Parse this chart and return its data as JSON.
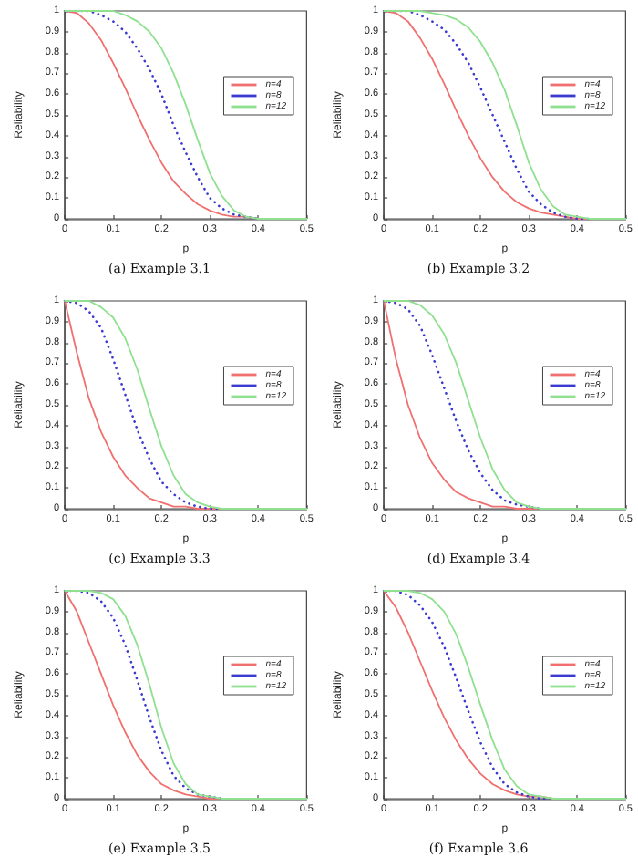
{
  "chart_data": [
    {
      "type": "line",
      "title": "(a) Example 3.1",
      "xlabel": "p",
      "ylabel": "Reliability",
      "x": [
        0,
        0.025,
        0.05,
        0.075,
        0.1,
        0.125,
        0.15,
        0.175,
        0.2,
        0.225,
        0.25,
        0.275,
        0.3,
        0.325,
        0.35,
        0.375,
        0.4,
        0.425,
        0.45,
        0.475,
        0.5
      ],
      "xlim": [
        0,
        0.5
      ],
      "xticks": [
        0,
        0.1,
        0.2,
        0.3,
        0.4,
        0.5
      ],
      "ylim": [
        0,
        1
      ],
      "yticks": [
        0,
        0.1,
        0.2,
        0.3,
        0.4,
        0.5,
        0.6,
        0.7,
        0.8,
        0.9,
        1
      ],
      "grid": false,
      "legend": "right",
      "marker": "none",
      "series": [
        {
          "name": "n=4",
          "color": "#f07070",
          "line_style": "solid",
          "values": [
            1,
            0.99,
            0.94,
            0.86,
            0.75,
            0.63,
            0.5,
            0.38,
            0.27,
            0.18,
            0.12,
            0.07,
            0.04,
            0.02,
            0.01,
            0.01,
            0,
            null,
            null,
            null,
            null
          ]
        },
        {
          "name": "n=8",
          "color": "#3a3ad0",
          "line_style": "dotted",
          "values": [
            1,
            1,
            1,
            0.98,
            0.95,
            0.9,
            0.82,
            0.72,
            0.6,
            0.45,
            0.32,
            0.2,
            0.1,
            0.05,
            0.02,
            0.01,
            0,
            null,
            null,
            null,
            null
          ]
        },
        {
          "name": "n=12",
          "color": "#8fe08f",
          "line_style": "solid",
          "values": [
            1,
            1,
            1,
            1,
            1,
            0.98,
            0.95,
            0.9,
            0.82,
            0.7,
            0.55,
            0.38,
            0.22,
            0.11,
            0.04,
            0.01,
            0,
            0,
            0,
            0,
            0
          ]
        }
      ]
    },
    {
      "type": "line",
      "title": "(b) Example 3.2",
      "xlabel": "p",
      "ylabel": "Reliability",
      "x": [
        0,
        0.025,
        0.05,
        0.075,
        0.1,
        0.125,
        0.15,
        0.175,
        0.2,
        0.225,
        0.25,
        0.275,
        0.3,
        0.325,
        0.35,
        0.375,
        0.4,
        0.425,
        0.45,
        0.475,
        0.5
      ],
      "xlim": [
        0,
        0.5
      ],
      "xticks": [
        0,
        0.1,
        0.2,
        0.3,
        0.4,
        0.5
      ],
      "ylim": [
        0,
        1
      ],
      "yticks": [
        0,
        0.1,
        0.2,
        0.3,
        0.4,
        0.5,
        0.6,
        0.7,
        0.8,
        0.9,
        1
      ],
      "grid": false,
      "legend": "right",
      "marker": "none",
      "series": [
        {
          "name": "n=4",
          "color": "#f07070",
          "line_style": "solid",
          "values": [
            1,
            0.99,
            0.95,
            0.87,
            0.77,
            0.65,
            0.52,
            0.4,
            0.29,
            0.2,
            0.13,
            0.08,
            0.05,
            0.03,
            0.02,
            0.01,
            0,
            0,
            null,
            null,
            null
          ]
        },
        {
          "name": "n=8",
          "color": "#3a3ad0",
          "line_style": "dotted",
          "values": [
            1,
            1,
            1,
            0.98,
            0.95,
            0.91,
            0.84,
            0.75,
            0.63,
            0.5,
            0.37,
            0.24,
            0.13,
            0.07,
            0.03,
            0.01,
            0,
            0,
            null,
            null,
            null
          ]
        },
        {
          "name": "n=12",
          "color": "#8fe08f",
          "line_style": "solid",
          "values": [
            1,
            1,
            1,
            1,
            0.99,
            0.98,
            0.96,
            0.92,
            0.85,
            0.75,
            0.62,
            0.45,
            0.27,
            0.14,
            0.06,
            0.02,
            0.01,
            0,
            0,
            0,
            0
          ]
        }
      ]
    },
    {
      "type": "line",
      "title": "(c) Example 3.3",
      "xlabel": "p",
      "ylabel": "Reliability",
      "x": [
        0,
        0.025,
        0.05,
        0.075,
        0.1,
        0.125,
        0.15,
        0.175,
        0.2,
        0.225,
        0.25,
        0.275,
        0.3,
        0.325,
        0.35,
        0.375,
        0.4,
        0.425,
        0.45,
        0.475,
        0.5
      ],
      "xlim": [
        0,
        0.5
      ],
      "xticks": [
        0,
        0.1,
        0.2,
        0.3,
        0.4,
        0.5
      ],
      "ylim": [
        0,
        1
      ],
      "yticks": [
        0,
        0.1,
        0.2,
        0.3,
        0.4,
        0.5,
        0.6,
        0.7,
        0.8,
        0.9,
        1
      ],
      "grid": false,
      "legend": "right",
      "marker": "none",
      "series": [
        {
          "name": "n=4",
          "color": "#f07070",
          "line_style": "solid",
          "values": [
            1,
            0.75,
            0.53,
            0.37,
            0.25,
            0.16,
            0.1,
            0.05,
            0.03,
            0.01,
            0.01,
            0,
            0,
            0,
            null,
            null,
            null,
            null,
            null,
            null,
            null
          ]
        },
        {
          "name": "n=8",
          "color": "#3a3ad0",
          "line_style": "dotted",
          "values": [
            1,
            0.99,
            0.95,
            0.87,
            0.72,
            0.55,
            0.38,
            0.24,
            0.13,
            0.07,
            0.03,
            0.01,
            0,
            0,
            null,
            null,
            null,
            null,
            null,
            null,
            null
          ]
        },
        {
          "name": "n=12",
          "color": "#8fe08f",
          "line_style": "solid",
          "values": [
            1,
            1,
            1,
            0.97,
            0.92,
            0.82,
            0.67,
            0.48,
            0.3,
            0.16,
            0.07,
            0.03,
            0.01,
            0,
            0,
            0,
            0,
            0,
            0,
            0,
            0
          ]
        }
      ]
    },
    {
      "type": "line",
      "title": "(d) Example 3.4",
      "xlabel": "p",
      "ylabel": "Reliability",
      "x": [
        0,
        0.025,
        0.05,
        0.075,
        0.1,
        0.125,
        0.15,
        0.175,
        0.2,
        0.225,
        0.25,
        0.275,
        0.3,
        0.325,
        0.35,
        0.375,
        0.4,
        0.425,
        0.45,
        0.475,
        0.5
      ],
      "xlim": [
        0,
        0.5
      ],
      "xticks": [
        0,
        0.1,
        0.2,
        0.3,
        0.4,
        0.5
      ],
      "ylim": [
        0,
        1
      ],
      "yticks": [
        0,
        0.1,
        0.2,
        0.3,
        0.4,
        0.5,
        0.6,
        0.7,
        0.8,
        0.9,
        1
      ],
      "grid": false,
      "legend": "right",
      "marker": "none",
      "series": [
        {
          "name": "n=4",
          "color": "#f07070",
          "line_style": "solid",
          "values": [
            1,
            0.72,
            0.5,
            0.34,
            0.22,
            0.14,
            0.08,
            0.05,
            0.03,
            0.01,
            0.01,
            0,
            0,
            0,
            null,
            null,
            null,
            null,
            null,
            null,
            null
          ]
        },
        {
          "name": "n=8",
          "color": "#3a3ad0",
          "line_style": "dotted",
          "values": [
            1,
            0.99,
            0.96,
            0.88,
            0.74,
            0.58,
            0.42,
            0.28,
            0.17,
            0.09,
            0.04,
            0.02,
            0.01,
            0,
            null,
            null,
            null,
            null,
            null,
            null,
            null
          ]
        },
        {
          "name": "n=12",
          "color": "#8fe08f",
          "line_style": "solid",
          "values": [
            1,
            1,
            1,
            0.98,
            0.93,
            0.84,
            0.7,
            0.52,
            0.34,
            0.19,
            0.09,
            0.03,
            0.01,
            0,
            0,
            0,
            0,
            0,
            0,
            0,
            0
          ]
        }
      ]
    },
    {
      "type": "line",
      "title": "(e) Example 3.5",
      "xlabel": "p",
      "ylabel": "Reliability",
      "x": [
        0,
        0.025,
        0.05,
        0.075,
        0.1,
        0.125,
        0.15,
        0.175,
        0.2,
        0.225,
        0.25,
        0.275,
        0.3,
        0.325,
        0.35,
        0.375,
        0.4,
        0.425,
        0.45,
        0.475,
        0.5
      ],
      "xlim": [
        0,
        0.5
      ],
      "xticks": [
        0,
        0.1,
        0.2,
        0.3,
        0.4,
        0.5
      ],
      "ylim": [
        0,
        1
      ],
      "yticks": [
        0,
        0.1,
        0.2,
        0.3,
        0.4,
        0.5,
        0.6,
        0.7,
        0.8,
        0.9,
        1
      ],
      "grid": false,
      "legend": "right",
      "marker": "none",
      "series": [
        {
          "name": "n=4",
          "color": "#f07070",
          "line_style": "solid",
          "values": [
            1,
            0.9,
            0.75,
            0.6,
            0.45,
            0.32,
            0.21,
            0.13,
            0.07,
            0.04,
            0.02,
            0.01,
            0,
            0,
            null,
            null,
            null,
            null,
            null,
            null,
            null
          ]
        },
        {
          "name": "n=8",
          "color": "#3a3ad0",
          "line_style": "dotted",
          "values": [
            1,
            1,
            0.99,
            0.95,
            0.87,
            0.74,
            0.57,
            0.39,
            0.23,
            0.11,
            0.05,
            0.02,
            0.01,
            0,
            null,
            null,
            null,
            null,
            null,
            null,
            null
          ]
        },
        {
          "name": "n=12",
          "color": "#8fe08f",
          "line_style": "solid",
          "values": [
            1,
            1,
            1,
            0.99,
            0.96,
            0.88,
            0.74,
            0.55,
            0.34,
            0.17,
            0.07,
            0.02,
            0.01,
            0,
            0,
            0,
            0,
            0,
            0,
            0,
            0
          ]
        }
      ]
    },
    {
      "type": "line",
      "title": "(f) Example 3.6",
      "xlabel": "p",
      "ylabel": "Reliability",
      "x": [
        0,
        0.025,
        0.05,
        0.075,
        0.1,
        0.125,
        0.15,
        0.175,
        0.2,
        0.225,
        0.25,
        0.275,
        0.3,
        0.325,
        0.35,
        0.375,
        0.4,
        0.425,
        0.45,
        0.475,
        0.5
      ],
      "xlim": [
        0,
        0.5
      ],
      "xticks": [
        0,
        0.1,
        0.2,
        0.3,
        0.4,
        0.5
      ],
      "ylim": [
        0,
        1
      ],
      "yticks": [
        0,
        0.1,
        0.2,
        0.3,
        0.4,
        0.5,
        0.6,
        0.7,
        0.8,
        0.9,
        1
      ],
      "grid": false,
      "legend": "right",
      "marker": "none",
      "series": [
        {
          "name": "n=4",
          "color": "#f07070",
          "line_style": "solid",
          "values": [
            1,
            0.92,
            0.8,
            0.66,
            0.52,
            0.39,
            0.28,
            0.19,
            0.12,
            0.07,
            0.04,
            0.02,
            0.01,
            0.01,
            0,
            null,
            null,
            null,
            null,
            null,
            null
          ]
        },
        {
          "name": "n=8",
          "color": "#3a3ad0",
          "line_style": "dotted",
          "values": [
            1,
            1,
            0.98,
            0.93,
            0.85,
            0.73,
            0.58,
            0.42,
            0.27,
            0.15,
            0.07,
            0.03,
            0.01,
            0,
            0,
            null,
            null,
            null,
            null,
            null,
            null
          ]
        },
        {
          "name": "n=12",
          "color": "#8fe08f",
          "line_style": "solid",
          "values": [
            1,
            1,
            1,
            0.99,
            0.96,
            0.9,
            0.79,
            0.63,
            0.45,
            0.28,
            0.14,
            0.06,
            0.02,
            0.01,
            0,
            0,
            0,
            0,
            0,
            0,
            0
          ]
        }
      ]
    }
  ]
}
